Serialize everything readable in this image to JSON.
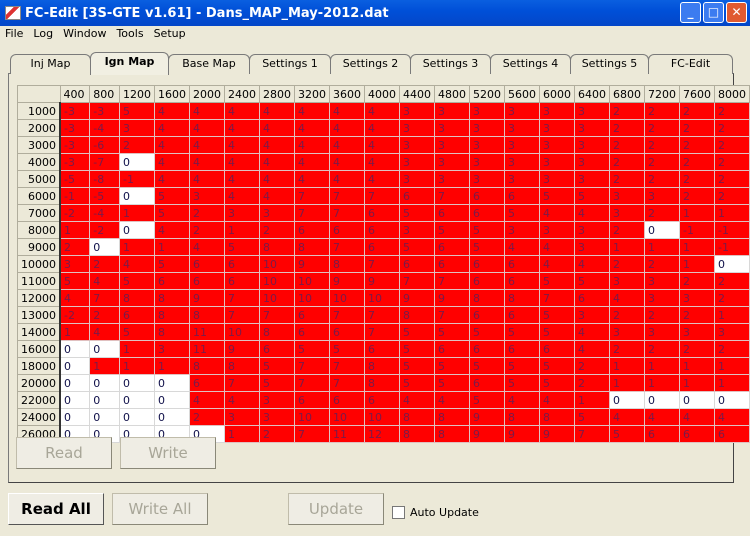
{
  "window": {
    "title": "FC-Edit [3S-GTE v1.61] - Dans_MAP_May-2012.dat",
    "minimize": "_",
    "maximize": "□",
    "close": "✕"
  },
  "menu": [
    "File",
    "Log",
    "Window",
    "Tools",
    "Setup"
  ],
  "tabs": [
    {
      "label": "Inj Map"
    },
    {
      "label": "Ign Map",
      "active": true
    },
    {
      "label": "Base Map"
    },
    {
      "label": "Settings 1"
    },
    {
      "label": "Settings 2"
    },
    {
      "label": "Settings 3"
    },
    {
      "label": "Settings 4"
    },
    {
      "label": "Settings 5"
    },
    {
      "label": "FC-Edit"
    }
  ],
  "colors": {
    "cell_nonzero": "#ff0000",
    "cell_zero": "#ffffff"
  },
  "table": {
    "columns": [
      "400",
      "800",
      "1200",
      "1600",
      "2000",
      "2400",
      "2800",
      "3200",
      "3600",
      "4000",
      "4400",
      "4800",
      "5200",
      "5600",
      "6000",
      "6400",
      "6800",
      "7200",
      "7600",
      "8000"
    ],
    "rows": [
      {
        "label": "1000",
        "values": [
          -3,
          -3,
          5,
          4,
          4,
          4,
          4,
          4,
          4,
          4,
          3,
          3,
          3,
          3,
          3,
          3,
          2,
          2,
          2,
          2
        ]
      },
      {
        "label": "2000",
        "values": [
          -3,
          -4,
          3,
          4,
          4,
          4,
          4,
          4,
          4,
          4,
          3,
          3,
          3,
          3,
          3,
          3,
          2,
          2,
          2,
          2
        ]
      },
      {
        "label": "3000",
        "values": [
          -3,
          -6,
          2,
          4,
          4,
          4,
          4,
          4,
          4,
          4,
          3,
          3,
          3,
          3,
          3,
          3,
          2,
          2,
          2,
          2
        ]
      },
      {
        "label": "4000",
        "values": [
          -3,
          -7,
          0,
          4,
          4,
          4,
          4,
          4,
          4,
          4,
          3,
          3,
          3,
          3,
          3,
          3,
          2,
          2,
          2,
          2
        ]
      },
      {
        "label": "5000",
        "values": [
          -5,
          -8,
          -1,
          4,
          4,
          4,
          4,
          4,
          4,
          4,
          3,
          3,
          3,
          3,
          3,
          3,
          2,
          2,
          2,
          2
        ]
      },
      {
        "label": "6000",
        "values": [
          -1,
          -5,
          0,
          5,
          3,
          4,
          4,
          7,
          7,
          7,
          6,
          7,
          6,
          6,
          5,
          5,
          3,
          3,
          2,
          2
        ]
      },
      {
        "label": "7000",
        "values": [
          -2,
          -4,
          1,
          5,
          2,
          3,
          3,
          7,
          7,
          6,
          5,
          6,
          6,
          5,
          4,
          4,
          3,
          2,
          1,
          1
        ]
      },
      {
        "label": "8000",
        "values": [
          1,
          -2,
          0,
          4,
          2,
          1,
          2,
          6,
          6,
          6,
          3,
          5,
          5,
          3,
          3,
          3,
          2,
          0,
          -1,
          -1
        ]
      },
      {
        "label": "9000",
        "values": [
          2,
          0,
          1,
          1,
          4,
          5,
          8,
          8,
          7,
          6,
          5,
          6,
          5,
          4,
          4,
          3,
          1,
          1,
          1,
          -1
        ]
      },
      {
        "label": "10000",
        "values": [
          3,
          2,
          4,
          5,
          6,
          6,
          10,
          9,
          8,
          7,
          6,
          6,
          6,
          6,
          4,
          4,
          2,
          2,
          1,
          0
        ]
      },
      {
        "label": "11000",
        "values": [
          5,
          4,
          5,
          6,
          6,
          6,
          10,
          10,
          9,
          9,
          7,
          7,
          6,
          6,
          5,
          5,
          3,
          3,
          2,
          2
        ]
      },
      {
        "label": "12000",
        "values": [
          4,
          7,
          8,
          8,
          9,
          7,
          10,
          10,
          10,
          10,
          9,
          9,
          8,
          8,
          7,
          6,
          4,
          3,
          3,
          2
        ]
      },
      {
        "label": "13000",
        "values": [
          -2,
          2,
          6,
          8,
          8,
          7,
          7,
          6,
          7,
          7,
          8,
          7,
          6,
          6,
          5,
          3,
          2,
          2,
          2,
          1
        ]
      },
      {
        "label": "14000",
        "values": [
          1,
          4,
          5,
          8,
          11,
          10,
          8,
          6,
          6,
          7,
          5,
          5,
          5,
          5,
          5,
          4,
          3,
          3,
          3,
          3
        ]
      },
      {
        "label": "16000",
        "values": [
          0,
          0,
          1,
          3,
          11,
          9,
          6,
          5,
          5,
          6,
          5,
          6,
          6,
          6,
          6,
          4,
          2,
          2,
          2,
          2
        ]
      },
      {
        "label": "18000",
        "values": [
          0,
          1,
          1,
          1,
          8,
          8,
          5,
          7,
          7,
          8,
          5,
          5,
          5,
          5,
          5,
          2,
          1,
          1,
          1,
          1
        ]
      },
      {
        "label": "20000",
        "values": [
          0,
          0,
          0,
          0,
          6,
          7,
          5,
          7,
          7,
          8,
          5,
          5,
          6,
          5,
          5,
          2,
          1,
          1,
          1,
          1
        ]
      },
      {
        "label": "22000",
        "values": [
          0,
          0,
          0,
          0,
          4,
          4,
          3,
          6,
          6,
          6,
          4,
          4,
          5,
          4,
          4,
          1,
          0,
          0,
          0,
          0
        ]
      },
      {
        "label": "24000",
        "values": [
          0,
          0,
          0,
          0,
          2,
          3,
          3,
          10,
          10,
          10,
          8,
          8,
          9,
          8,
          8,
          5,
          4,
          4,
          4,
          4
        ]
      },
      {
        "label": "26000",
        "values": [
          0,
          0,
          0,
          0,
          0,
          1,
          2,
          7,
          11,
          12,
          8,
          8,
          9,
          9,
          9,
          7,
          5,
          6,
          6,
          6
        ]
      }
    ]
  },
  "buttons": {
    "read": "Read",
    "write": "Write",
    "read_all": "Read All",
    "write_all": "Write All",
    "update": "Update"
  },
  "auto_update": {
    "label": "Auto Update",
    "checked": false
  }
}
